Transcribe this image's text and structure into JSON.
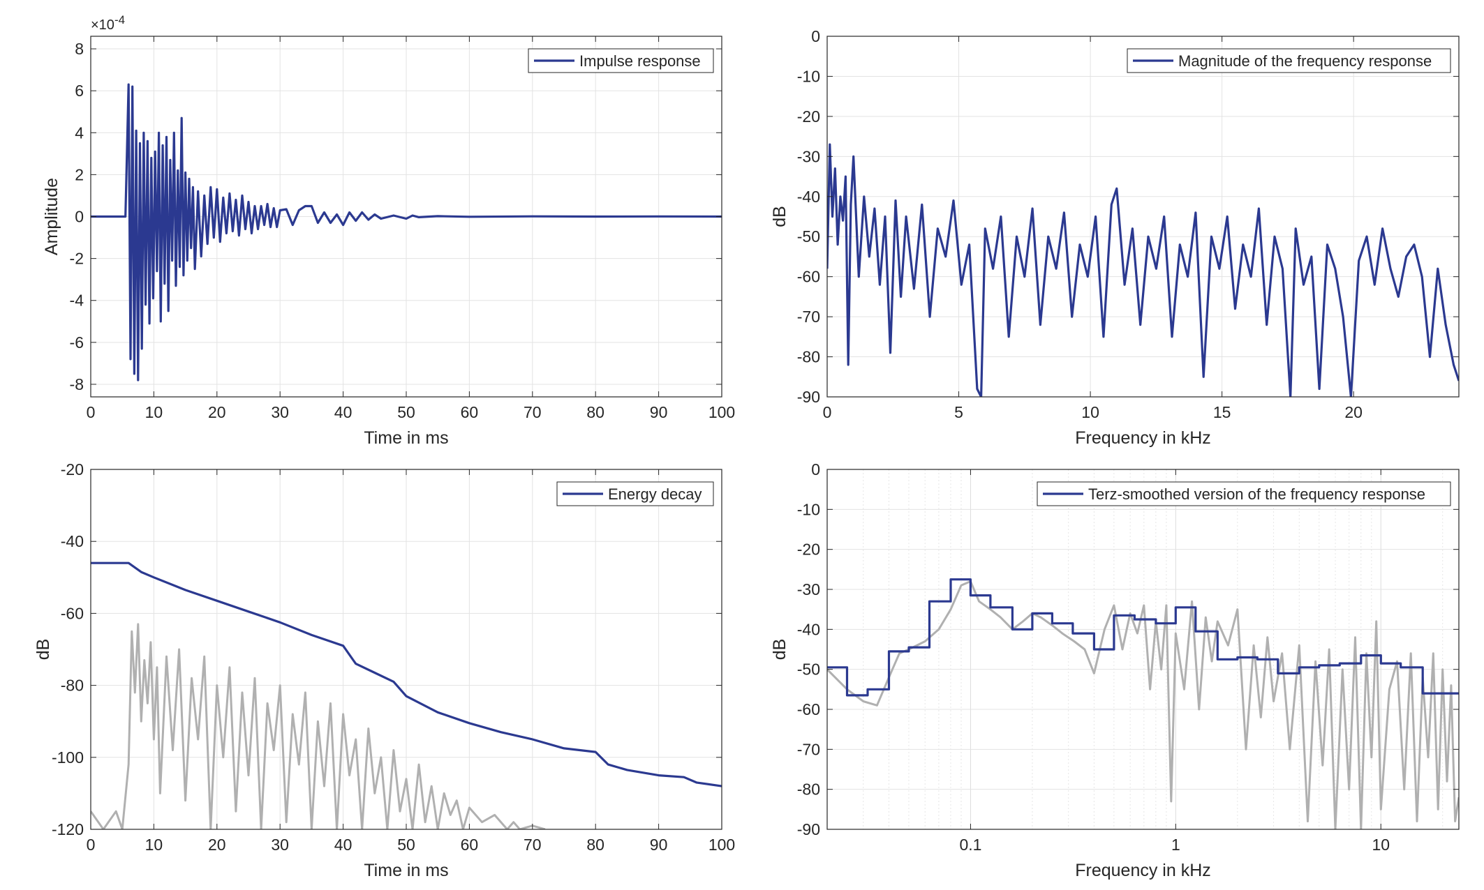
{
  "chart_data": [
    {
      "id": "impulse",
      "type": "line",
      "xlabel": "Time in ms",
      "ylabel": "Amplitude",
      "xlim": [
        0,
        100
      ],
      "ylim": [
        -8.6,
        8.6
      ],
      "xticks": [
        0,
        10,
        20,
        30,
        40,
        50,
        60,
        70,
        80,
        90,
        100
      ],
      "yticks": [
        -8,
        -6,
        -4,
        -2,
        0,
        2,
        4,
        6,
        8
      ],
      "y_exponent_label": "×10-4",
      "y_exponent_base": "×10",
      "y_exponent_power": "-4",
      "grid": true,
      "legend_position": "top-right",
      "series": [
        {
          "name": "Impulse response",
          "color": "#2b3990",
          "x": [
            0,
            5.5,
            6.0,
            6.3,
            6.6,
            6.9,
            7.2,
            7.5,
            7.8,
            8.1,
            8.4,
            8.7,
            9.0,
            9.3,
            9.6,
            9.9,
            10.2,
            10.5,
            10.8,
            11.1,
            11.4,
            11.7,
            12.0,
            12.3,
            12.6,
            12.9,
            13.2,
            13.5,
            13.8,
            14.1,
            14.4,
            14.7,
            15.0,
            15.3,
            15.6,
            15.9,
            16.2,
            16.5,
            17.0,
            17.5,
            18.0,
            18.5,
            19.0,
            19.5,
            20.0,
            20.5,
            21.0,
            21.5,
            22.0,
            22.5,
            23.0,
            23.5,
            24.0,
            24.5,
            25.0,
            25.5,
            26.0,
            26.5,
            27.0,
            27.5,
            28.0,
            28.5,
            29.0,
            29.5,
            30.0,
            31.0,
            32.0,
            33.0,
            34.0,
            35.0,
            36.0,
            37.0,
            38.0,
            39.0,
            40.0,
            41.0,
            42.0,
            43.0,
            44.0,
            45.0,
            46.0,
            48.0,
            50.0,
            51.0,
            52.0,
            55.0,
            60.0,
            70.0,
            80.0,
            90.0,
            100.0
          ],
          "values": [
            0,
            0,
            6.3,
            -6.8,
            6.2,
            -7.5,
            4.1,
            -7.8,
            3.5,
            -6.3,
            4.0,
            -4.2,
            3.6,
            -5.1,
            2.8,
            -3.9,
            3.1,
            -2.6,
            4.0,
            -5.0,
            3.4,
            -3.2,
            3.8,
            -4.5,
            2.7,
            -2.1,
            4.0,
            -3.3,
            2.2,
            -2.4,
            4.7,
            -2.8,
            2.1,
            -2.1,
            1.8,
            -1.5,
            1.4,
            -2.5,
            1.2,
            -1.9,
            1.0,
            -1.3,
            1.4,
            -1.0,
            1.3,
            -1.2,
            0.9,
            -0.8,
            1.1,
            -0.7,
            0.8,
            -0.9,
            1.0,
            -0.6,
            0.7,
            -0.8,
            0.5,
            -0.6,
            0.5,
            -0.4,
            0.6,
            -0.5,
            0.4,
            -0.5,
            0.3,
            0.35,
            -0.4,
            0.3,
            0.5,
            0.5,
            -0.3,
            0.2,
            -0.3,
            0.1,
            -0.4,
            0.2,
            -0.2,
            0.2,
            -0.15,
            0.1,
            -0.1,
            0.05,
            -0.1,
            0.05,
            -0.03,
            0.02,
            -0.01,
            0.01,
            0,
            0.005,
            0
          ]
        }
      ]
    },
    {
      "id": "magnitude",
      "type": "line",
      "xlabel": "Frequency in kHz",
      "ylabel": "dB",
      "xlim": [
        0,
        24
      ],
      "ylim": [
        -90,
        0
      ],
      "xticks": [
        0,
        5,
        10,
        15,
        20
      ],
      "yticks": [
        0,
        -10,
        -20,
        -30,
        -40,
        -50,
        -60,
        -70,
        -80,
        -90
      ],
      "grid": true,
      "legend_position": "top-right",
      "series": [
        {
          "name": "Magnitude of the frequency response",
          "color": "#2b3990",
          "x": [
            0,
            0.1,
            0.2,
            0.3,
            0.4,
            0.5,
            0.6,
            0.7,
            0.8,
            0.9,
            1.0,
            1.2,
            1.4,
            1.6,
            1.8,
            2.0,
            2.2,
            2.4,
            2.6,
            2.8,
            3.0,
            3.3,
            3.6,
            3.9,
            4.2,
            4.5,
            4.8,
            5.1,
            5.4,
            5.7,
            5.85,
            6.0,
            6.3,
            6.6,
            6.9,
            7.2,
            7.5,
            7.8,
            8.1,
            8.4,
            8.7,
            9.0,
            9.3,
            9.6,
            9.9,
            10.2,
            10.5,
            10.8,
            11.0,
            11.3,
            11.6,
            11.9,
            12.2,
            12.5,
            12.8,
            13.1,
            13.4,
            13.7,
            14.0,
            14.3,
            14.6,
            14.9,
            15.2,
            15.5,
            15.8,
            16.1,
            16.4,
            16.7,
            17.0,
            17.3,
            17.6,
            17.8,
            18.1,
            18.4,
            18.7,
            19.0,
            19.3,
            19.6,
            19.9,
            20.2,
            20.5,
            20.8,
            21.1,
            21.4,
            21.7,
            22.0,
            22.3,
            22.6,
            22.9,
            23.2,
            23.5,
            23.8,
            24.0
          ],
          "values": [
            -58,
            -27,
            -45,
            -33,
            -52,
            -40,
            -46,
            -35,
            -82,
            -42,
            -30,
            -60,
            -40,
            -55,
            -43,
            -62,
            -45,
            -79,
            -41,
            -65,
            -45,
            -63,
            -42,
            -70,
            -48,
            -55,
            -41,
            -62,
            -52,
            -88,
            -90,
            -48,
            -58,
            -45,
            -75,
            -50,
            -60,
            -43,
            -72,
            -50,
            -58,
            -44,
            -70,
            -52,
            -60,
            -45,
            -75,
            -42,
            -38,
            -62,
            -48,
            -72,
            -50,
            -58,
            -45,
            -75,
            -52,
            -60,
            -44,
            -85,
            -50,
            -58,
            -45,
            -68,
            -52,
            -60,
            -43,
            -72,
            -50,
            -58,
            -90,
            -48,
            -62,
            -55,
            -88,
            -52,
            -58,
            -70,
            -90,
            -56,
            -50,
            -62,
            -48,
            -58,
            -65,
            -55,
            -52,
            -60,
            -80,
            -58,
            -72,
            -82,
            -86
          ]
        }
      ]
    },
    {
      "id": "energy",
      "type": "line",
      "xlabel": "Time in ms",
      "ylabel": "dB",
      "xlim": [
        0,
        100
      ],
      "ylim": [
        -120,
        -20
      ],
      "xticks": [
        0,
        10,
        20,
        30,
        40,
        50,
        60,
        70,
        80,
        90,
        100
      ],
      "yticks": [
        -20,
        -40,
        -60,
        -80,
        -100,
        -120
      ],
      "grid": true,
      "legend_position": "top-right",
      "series": [
        {
          "name": "Energy decay",
          "color": "#2b3990",
          "x": [
            0,
            6.0,
            8.0,
            10.0,
            15.0,
            20.0,
            25.0,
            30.0,
            35.0,
            40.0,
            42.0,
            45.0,
            48.0,
            50.0,
            55.0,
            60.0,
            65.0,
            70.0,
            75.0,
            80.0,
            82.0,
            85.0,
            90.0,
            94.0,
            96.0,
            100.0
          ],
          "values": [
            -46,
            -46,
            -48.5,
            -50,
            -53.5,
            -56.5,
            -59.5,
            -62.5,
            -66,
            -69,
            -74,
            -76.5,
            -79,
            -83,
            -87.5,
            -90.5,
            -93,
            -95,
            -97.5,
            -98.5,
            -102,
            -103.5,
            -105,
            -105.5,
            -107,
            -108
          ]
        },
        {
          "color": "#b0b0b0",
          "x": [
            0,
            2,
            4,
            5,
            6,
            6.5,
            7,
            7.5,
            8,
            8.5,
            9,
            9.5,
            10,
            10.5,
            11,
            12,
            13,
            14,
            15,
            16,
            17,
            18,
            19,
            20,
            21,
            22,
            23,
            24,
            25,
            26,
            27,
            28,
            29,
            30,
            31,
            32,
            33,
            34,
            35,
            36,
            37,
            38,
            39,
            40,
            41,
            42,
            43,
            44,
            45,
            46,
            47,
            48,
            49,
            50,
            51,
            52,
            53,
            54,
            55,
            56,
            57,
            58,
            59,
            60,
            62,
            64,
            66,
            67,
            68,
            70,
            72
          ],
          "values": [
            -115,
            -120,
            -115,
            -120,
            -102,
            -65,
            -82,
            -63,
            -90,
            -73,
            -85,
            -68,
            -95,
            -75,
            -110,
            -72,
            -98,
            -70,
            -112,
            -78,
            -95,
            -72,
            -120,
            -80,
            -100,
            -75,
            -115,
            -82,
            -105,
            -78,
            -120,
            -85,
            -98,
            -80,
            -118,
            -88,
            -102,
            -82,
            -120,
            -90,
            -108,
            -85,
            -120,
            -88,
            -105,
            -95,
            -120,
            -92,
            -110,
            -100,
            -120,
            -98,
            -115,
            -106,
            -120,
            -102,
            -118,
            -108,
            -120,
            -110,
            -116,
            -112,
            -120,
            -114,
            -118,
            -116,
            -120,
            -118,
            -120,
            -119,
            -120
          ]
        }
      ]
    },
    {
      "id": "terz",
      "type": "line",
      "xlabel": "Frequency in kHz",
      "ylabel": "dB",
      "x_scale": "log",
      "xlim": [
        0.02,
        24
      ],
      "ylim": [
        -90,
        0
      ],
      "xticks": [
        0.1,
        1,
        10
      ],
      "xtick_labels": [
        "0.1",
        "1",
        "10"
      ],
      "yticks": [
        0,
        -10,
        -20,
        -30,
        -40,
        -50,
        -60,
        -70,
        -80,
        -90
      ],
      "grid": true,
      "legend_position": "top-right",
      "series": [
        {
          "name": "Terz-smoothed version of the frequency response",
          "color": "#2b3990",
          "step": true,
          "x": [
            0.02,
            0.025,
            0.0315,
            0.04,
            0.05,
            0.063,
            0.08,
            0.1,
            0.125,
            0.16,
            0.2,
            0.25,
            0.315,
            0.4,
            0.5,
            0.63,
            0.8,
            1.0,
            1.25,
            1.6,
            2.0,
            2.5,
            3.15,
            4.0,
            5.0,
            6.3,
            8.0,
            10.0,
            12.5,
            16.0,
            20.0,
            24.0
          ],
          "values": [
            -49.5,
            -56.5,
            -55,
            -45.5,
            -44.5,
            -33,
            -27.5,
            -31.5,
            -34.5,
            -40,
            -36,
            -38.5,
            -41,
            -45,
            -36.5,
            -37.5,
            -38.5,
            -34.5,
            -40.5,
            -47.5,
            -47,
            -47.5,
            -51,
            -49.5,
            -49,
            -48.5,
            -46.5,
            -48.5,
            -49.5,
            -56,
            -56,
            -56
          ]
        },
        {
          "color": "#b0b0b0",
          "x": [
            0.02,
            0.025,
            0.03,
            0.035,
            0.04,
            0.045,
            0.05,
            0.06,
            0.07,
            0.08,
            0.09,
            0.1,
            0.11,
            0.125,
            0.14,
            0.16,
            0.18,
            0.2,
            0.22,
            0.25,
            0.28,
            0.32,
            0.36,
            0.4,
            0.45,
            0.5,
            0.55,
            0.6,
            0.65,
            0.7,
            0.75,
            0.8,
            0.85,
            0.9,
            0.95,
            1.0,
            1.1,
            1.2,
            1.3,
            1.4,
            1.5,
            1.6,
            1.8,
            2.0,
            2.2,
            2.4,
            2.6,
            2.8,
            3.0,
            3.3,
            3.6,
            4.0,
            4.4,
            4.8,
            5.2,
            5.6,
            6.0,
            6.5,
            7.0,
            7.5,
            8.0,
            8.5,
            9.0,
            9.5,
            10.0,
            11.0,
            12.0,
            13.0,
            14.0,
            15.0,
            16.0,
            17.0,
            18.0,
            19.0,
            20.0,
            21.0,
            22.0,
            23.0,
            24.0
          ],
          "values": [
            -50,
            -55,
            -58,
            -59,
            -52,
            -46,
            -45,
            -43,
            -40,
            -35,
            -29,
            -28,
            -33,
            -35,
            -37,
            -40,
            -38,
            -36,
            -37,
            -39,
            -41,
            -43,
            -45,
            -51,
            -40,
            -34,
            -45,
            -36,
            -41,
            -34,
            -55,
            -38,
            -50,
            -34,
            -83,
            -41,
            -55,
            -33,
            -60,
            -37,
            -48,
            -38,
            -44,
            -35,
            -70,
            -44,
            -62,
            -42,
            -58,
            -46,
            -70,
            -44,
            -88,
            -48,
            -74,
            -45,
            -90,
            -50,
            -80,
            -42,
            -90,
            -46,
            -72,
            -38,
            -85,
            -55,
            -48,
            -80,
            -46,
            -88,
            -52,
            -72,
            -46,
            -85,
            -50,
            -78,
            -54,
            -88,
            -82
          ]
        }
      ]
    }
  ]
}
